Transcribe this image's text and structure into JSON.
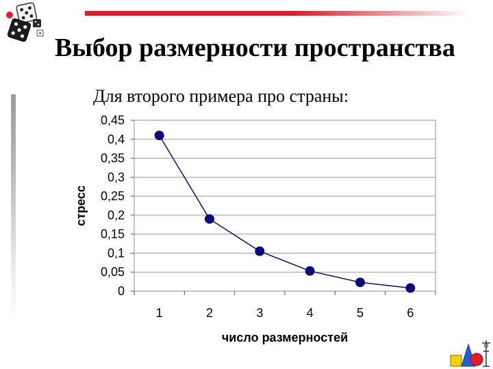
{
  "slide": {
    "title": "Выбор размерности пространства",
    "subtitle": "Для второго примера про страны:"
  },
  "icons": {
    "dice": "dice-icon",
    "corner": "geometric-shapes-icon"
  },
  "colors": {
    "accent_bar": "#e11d2b",
    "series": "#0a0a78"
  },
  "chart_data": {
    "type": "line",
    "x": [
      1,
      2,
      3,
      4,
      5,
      6
    ],
    "y": [
      0.41,
      0.19,
      0.105,
      0.053,
      0.023,
      0.008
    ],
    "xlabel": "число размерностей",
    "ylabel": "стресс",
    "ylim": [
      0,
      0.45
    ],
    "xlim": [
      0.5,
      6.5
    ],
    "x_ticks": [
      "1",
      "2",
      "3",
      "4",
      "5",
      "6"
    ],
    "y_ticks": [
      "0",
      "0,05",
      "0,1",
      "0,15",
      "0,2",
      "0,25",
      "0,3",
      "0,35",
      "0,4",
      "0,45"
    ],
    "grid": "horizontal",
    "legend": "none"
  }
}
